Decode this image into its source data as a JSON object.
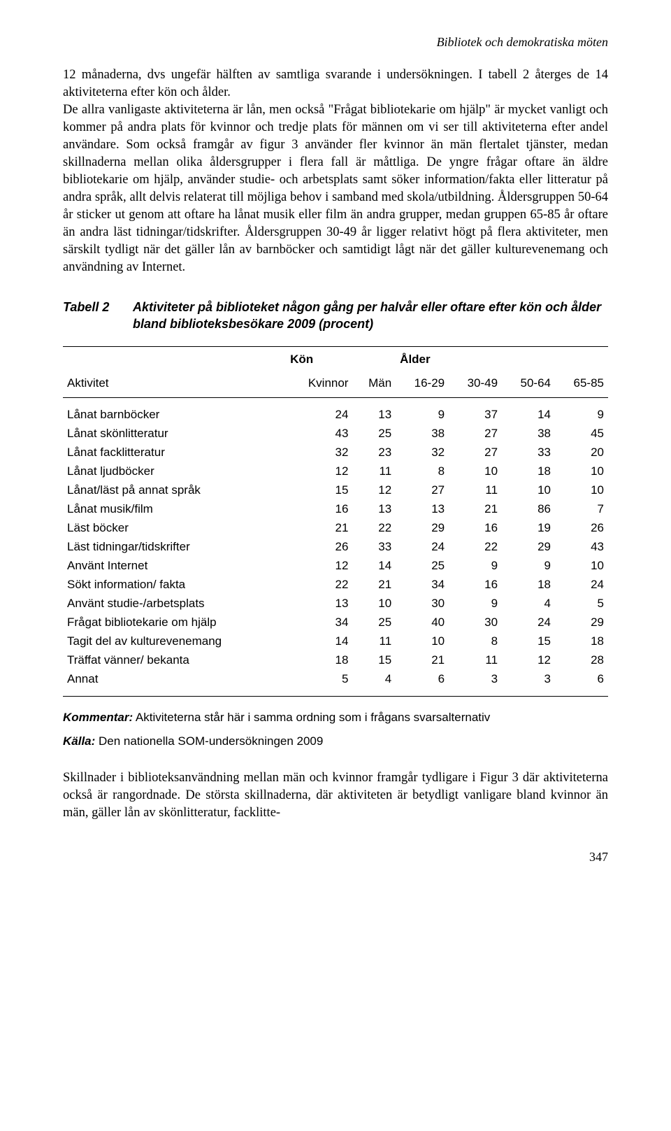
{
  "header": "Bibliotek och demokratiska möten",
  "paragraph1": "12 månaderna, dvs ungefär hälften av samtliga svarande i undersökningen. I tabell 2 återges de 14 aktiviteterna efter kön och ålder.",
  "paragraph2": "De allra vanligaste aktiviteterna är lån, men också \"Frågat bibliotekarie om hjälp\" är mycket vanligt och kommer på andra plats för kvinnor och tredje plats för männen om vi ser till aktiviteterna efter andel användare. Som också framgår av figur 3 använder fler kvinnor än män flertalet tjänster, medan skillnaderna mellan olika åldersgrupper i flera fall är måttliga. De yngre frågar oftare än äldre bibliotekarie om hjälp, använder studie- och arbetsplats samt söker information/fakta eller litteratur på andra språk, allt delvis relaterat till möjliga behov i samband med skola/utbildning. Åldersgruppen 50-64 år sticker ut genom att oftare ha lånat musik eller film än andra grupper, medan gruppen 65-85 år oftare än andra läst tidningar/tidskrifter. Åldersgruppen 30-49 år ligger relativt högt på flera aktiviteter, men särskilt tydligt när det gäller lån av barnböcker och samtidigt lågt när det gäller kulturevenemang och användning av Internet.",
  "table": {
    "label": "Tabell 2",
    "title": "Aktiviteter på biblioteket någon gång per halvår eller oftare efter kön och ålder bland biblioteksbesökare 2009 (procent)",
    "group_headers": {
      "kon": "Kön",
      "alder": "Ålder"
    },
    "columns": [
      "Aktivitet",
      "Kvinnor",
      "Män",
      "16-29",
      "30-49",
      "50-64",
      "65-85"
    ],
    "rows": [
      [
        "Lånat barnböcker",
        24,
        13,
        9,
        37,
        14,
        9
      ],
      [
        "Lånat skönlitteratur",
        43,
        25,
        38,
        27,
        38,
        45
      ],
      [
        "Lånat facklitteratur",
        32,
        23,
        32,
        27,
        33,
        20
      ],
      [
        "Lånat ljudböcker",
        12,
        11,
        8,
        10,
        18,
        10
      ],
      [
        "Lånat/läst på annat språk",
        15,
        12,
        27,
        11,
        10,
        10
      ],
      [
        "Lånat musik/film",
        16,
        13,
        13,
        21,
        86,
        7
      ],
      [
        "Läst böcker",
        21,
        22,
        29,
        16,
        19,
        26
      ],
      [
        "Läst tidningar/tidskrifter",
        26,
        33,
        24,
        22,
        29,
        43
      ],
      [
        "Använt Internet",
        12,
        14,
        25,
        9,
        9,
        10
      ],
      [
        "Sökt information/ fakta",
        22,
        21,
        34,
        16,
        18,
        24
      ],
      [
        "Använt studie-/arbetsplats",
        13,
        10,
        30,
        9,
        4,
        5
      ],
      [
        "Frågat bibliotekarie om hjälp",
        34,
        25,
        40,
        30,
        24,
        29
      ],
      [
        "Tagit del av kulturevenemang",
        14,
        11,
        10,
        8,
        15,
        18
      ],
      [
        "Träffat vänner/ bekanta",
        18,
        15,
        21,
        11,
        12,
        28
      ],
      [
        "Annat",
        5,
        4,
        6,
        3,
        3,
        6
      ]
    ]
  },
  "comment_label": "Kommentar:",
  "comment_text": " Aktiviteterna står här i samma ordning som i frågans svarsalternativ",
  "source_label": "Källa:",
  "source_text": " Den nationella SOM-undersökningen 2009",
  "closing": "Skillnader i biblioteksanvändning mellan män och kvinnor framgår tydligare i Figur 3 där aktiviteterna också är rangordnade. De största skillnaderna, där aktiviteten är betydligt vanligare bland kvinnor än män, gäller lån av skönlitteratur, facklitte-",
  "page_number": "347"
}
